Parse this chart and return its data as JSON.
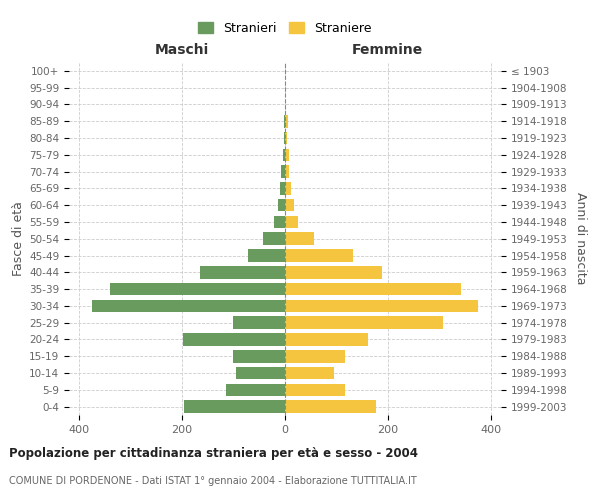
{
  "age_groups_bottom_to_top": [
    "0-4",
    "5-9",
    "10-14",
    "15-19",
    "20-24",
    "25-29",
    "30-34",
    "35-39",
    "40-44",
    "45-49",
    "50-54",
    "55-59",
    "60-64",
    "65-69",
    "70-74",
    "75-79",
    "80-84",
    "85-89",
    "90-94",
    "95-99",
    "100+"
  ],
  "birth_years_bottom_to_top": [
    "1999-2003",
    "1994-1998",
    "1989-1993",
    "1984-1988",
    "1979-1983",
    "1974-1978",
    "1969-1973",
    "1964-1968",
    "1959-1963",
    "1954-1958",
    "1949-1953",
    "1944-1948",
    "1939-1943",
    "1934-1938",
    "1929-1933",
    "1924-1928",
    "1919-1923",
    "1914-1918",
    "1909-1913",
    "1904-1908",
    "≤ 1903"
  ],
  "maschi_bottom_to_top": [
    196,
    115,
    96,
    102,
    198,
    102,
    375,
    340,
    165,
    72,
    42,
    22,
    14,
    10,
    8,
    4,
    2,
    2,
    0,
    0,
    0
  ],
  "femmine_bottom_to_top": [
    176,
    116,
    96,
    116,
    162,
    308,
    375,
    342,
    188,
    132,
    56,
    26,
    18,
    12,
    7,
    7,
    4,
    5,
    0,
    0,
    0
  ],
  "maschi_color": "#6a9b5e",
  "femmine_color": "#f5c540",
  "bg_color": "#ffffff",
  "grid_color": "#cccccc",
  "title": "Popolazione per cittadinanza straniera per età e sesso - 2004",
  "subtitle": "COMUNE DI PORDENONE - Dati ISTAT 1° gennaio 2004 - Elaborazione TUTTITALIA.IT",
  "xlabel_left": "Maschi",
  "xlabel_right": "Femmine",
  "ylabel_left": "Fasce di età",
  "ylabel_right": "Anni di nascita",
  "legend_stranieri": "Stranieri",
  "legend_straniere": "Straniere",
  "xlim": 420
}
